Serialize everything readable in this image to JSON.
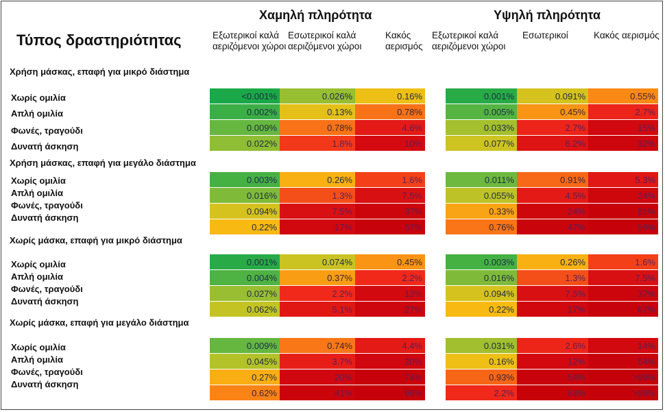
{
  "chart_data": {
    "type": "heatmap",
    "title": "Τύπος δραστηριότητας",
    "groups": [
      "Χαμηλή πληρότητα",
      "Υψηλή πληρότητα"
    ],
    "low_columns": [
      "Εξωτερικοί καλά αεριζόμενοι χώροι",
      "Εσωτερικοί καλά αεριζόμενοι χώροι",
      "Κακός αερισμός"
    ],
    "high_columns": [
      "Εξωτερικοί καλά αεριζόμενοι χώροι",
      "Εσωτερικοί",
      "Κακός αερισμός"
    ],
    "sections": [
      {
        "title": "Χρήση μάσκας, επαφή για μικρό διάστημα",
        "row_labels": [
          "Χωρίς ομιλία",
          "Απλή ομιλία",
          "Φωνές, τραγούδι",
          "Δυνατή άσκηση"
        ],
        "low": [
          [
            "<0.001%",
            "0.026%",
            "0.16%"
          ],
          [
            "0.002%",
            "0.13%",
            "0.78%"
          ],
          [
            "0.009%",
            "0.78%",
            "4.6%"
          ],
          [
            "0.022%",
            "1.8%",
            "10%"
          ]
        ],
        "high": [
          [
            "0.001%",
            "0.091%",
            "0.55%"
          ],
          [
            "0.005%",
            "0.45%",
            "2.7%"
          ],
          [
            "0.033%",
            "2.7%",
            "15%"
          ],
          [
            "0.077%",
            "6.2%",
            "32%"
          ]
        ]
      },
      {
        "title": "Χρήση μάσκας, επαφή για μεγάλο διάστημα",
        "row_labels": [
          "Χωρίς ομιλία",
          "Απλή ομιλία",
          "Φωνές, τραγούδι",
          "Δυνατή άσκηση"
        ],
        "low": [
          [
            "0.003%",
            "0.26%",
            "1.6%"
          ],
          [
            "0.016%",
            "1.3%",
            "7.5%"
          ],
          [
            "0.094%",
            "7.5%",
            "37%"
          ],
          [
            "0.22%",
            "17%",
            "67%"
          ]
        ],
        "high": [
          [
            "0.011%",
            "0.91%",
            "5.3%"
          ],
          [
            "0.055%",
            "4.5%",
            "24%"
          ],
          [
            "0.33%",
            "24%",
            "81%"
          ],
          [
            "0.76%",
            "47%",
            "98%"
          ]
        ]
      },
      {
        "title": "Χωρίς μάσκα, επαφή για μικρό διάστημα",
        "row_labels": [
          "Χωρίς ομιλία",
          "Απλή ομιλία",
          "Φωνές, τραγούδι",
          "Δυνατή άσκηση"
        ],
        "low": [
          [
            "0.001%",
            "0.074%",
            "0.45%"
          ],
          [
            "0.004%",
            "0.37%",
            "2.2%"
          ],
          [
            "0.027%",
            "2.2%",
            "13%"
          ],
          [
            "0.062%",
            "5.1%",
            "27%"
          ]
        ],
        "high": [
          [
            "0.003%",
            "0.26%",
            "1.6%"
          ],
          [
            "0.016%",
            "1.3%",
            "7.5%"
          ],
          [
            "0.094%",
            "7.5%",
            "37%"
          ],
          [
            "0.22%",
            "17%",
            "67%"
          ]
        ]
      },
      {
        "title": "Χωρίς μάσκα, επαφή για μεγάλο διάστημα",
        "row_labels": [
          "Χωρίς ομιλία",
          "Απλή ομιλία",
          "Φωνές, τραγούδι",
          "Δυνατή άσκηση"
        ],
        "low": [
          [
            "0.009%",
            "0.74%",
            "4.4%"
          ],
          [
            "0.045%",
            "3.7%",
            "20%"
          ],
          [
            "0.27%",
            "20%",
            "74%"
          ],
          [
            "0.62%",
            "41%",
            "96%"
          ]
        ],
        "high": [
          [
            "0.031%",
            "2.6%",
            "14%"
          ],
          [
            "0.16%",
            "12%",
            "54%"
          ],
          [
            "0.93%",
            "54%",
            ">99%"
          ],
          [
            "2.2%",
            "84%",
            ">99%"
          ]
        ]
      }
    ]
  }
}
